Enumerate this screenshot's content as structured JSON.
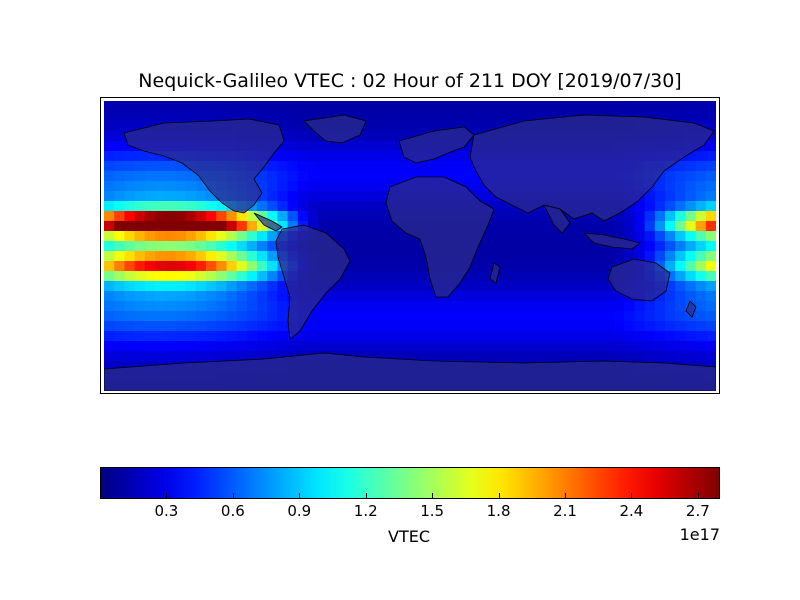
{
  "title": "Nequick-Galileo VTEC : 02 Hour of 211 DOY [2019/07/30]",
  "colorbar": {
    "label": "VTEC",
    "exponent": "1e17",
    "ticks": [
      "0.3",
      "0.6",
      "0.9",
      "1.2",
      "1.5",
      "1.8",
      "2.1",
      "2.4",
      "2.7"
    ],
    "tick_values": [
      0.3,
      0.6,
      0.9,
      1.2,
      1.5,
      1.8,
      2.1,
      2.4,
      2.7
    ],
    "range": [
      0.0,
      2.8
    ],
    "colormap": "jet"
  },
  "map_data": {
    "type": "heatmap",
    "projection": "cylindrical equidistant",
    "lon_range": [
      -180,
      180
    ],
    "lat_range": [
      -90,
      90
    ],
    "units": "TEC (x1e17)",
    "peak_region": "central Pacific, ~15°N, ~160°W",
    "peak_value": 2.75,
    "secondary_crests": "west Pacific / Southeast Asia, ~15°N and ~15°S",
    "minimum_region": "Atlantic / Africa, ~0.1–0.2"
  },
  "colors": {
    "frame": "#000000",
    "land_overlay": "#2a2a8c",
    "background": "#ffffff"
  }
}
